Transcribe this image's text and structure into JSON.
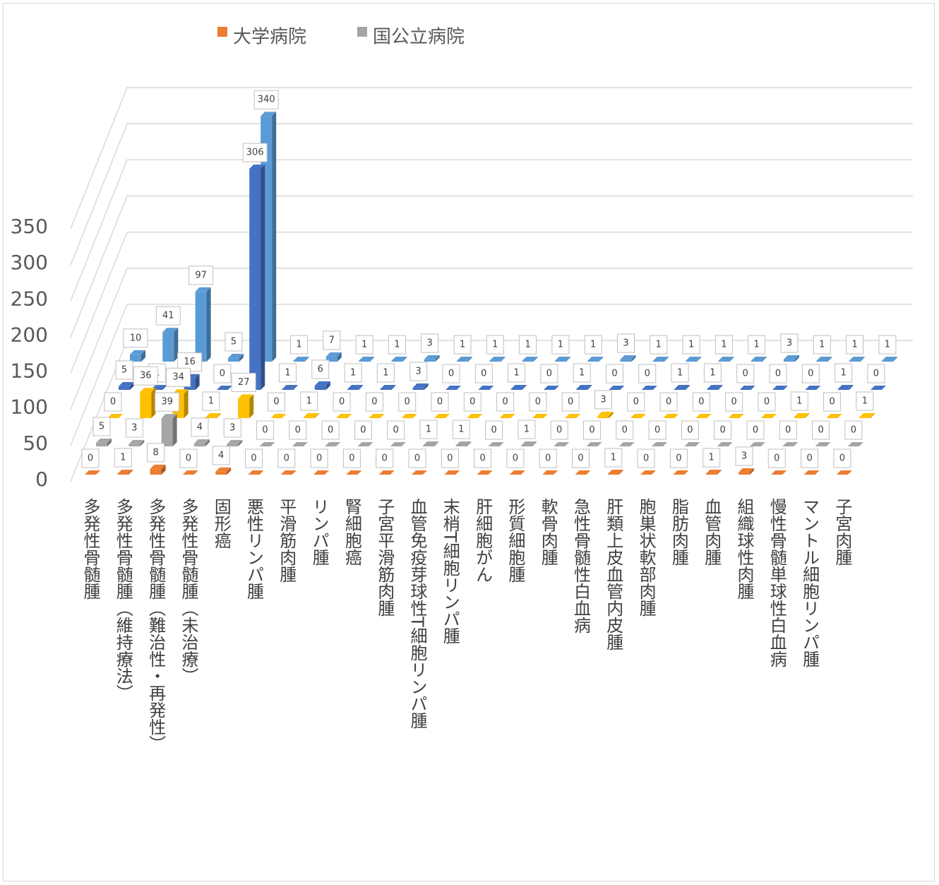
{
  "chart_data": {
    "type": "bar3d",
    "categories": [
      "多発性骨髄腫",
      "多発性骨髄腫（維持療法）",
      "多発性骨髄腫（難治性・再発性）",
      "多発性骨髄腫（未治療）",
      "固形癌",
      "悪性リンパ腫",
      "平滑筋肉腫",
      "リンパ腫",
      "腎細胞癌",
      "子宮平滑筋肉腫",
      "血管免疫芽球性T細胞リンパ腫",
      "末梢T細胞リンパ腫",
      "肝細胞がん",
      "形質細胞腫",
      "軟骨肉腫",
      "急性骨髄性白血病",
      "肝類上皮血管内皮腫",
      "胞巣状軟部肉腫",
      "脂肪肉腫",
      "血管肉腫",
      "組織球性肉腫",
      "慢性骨髄単球性白血病",
      "マントル細胞リンパ腫",
      "子宮肉腫"
    ],
    "series": [
      {
        "name": "大学病院",
        "color": "#ed7d31",
        "values": [
          0,
          1,
          8,
          0,
          4,
          0,
          0,
          0,
          0,
          0,
          0,
          0,
          0,
          0,
          0,
          0,
          1,
          0,
          0,
          1,
          3,
          0,
          0,
          0
        ]
      },
      {
        "name": "国公立病院",
        "color": "#a5a5a5",
        "values": [
          5,
          3,
          39,
          4,
          3,
          0,
          0,
          0,
          0,
          0,
          1,
          1,
          0,
          1,
          0,
          0,
          0,
          0,
          0,
          0,
          0,
          0,
          0,
          0
        ]
      },
      {
        "color": "#ffc000",
        "values": [
          0,
          36,
          34,
          1,
          27,
          0,
          1,
          0,
          0,
          0,
          0,
          0,
          0,
          0,
          0,
          3,
          0,
          0,
          0,
          0,
          0,
          1,
          0,
          1
        ]
      },
      {
        "color": "#4472c4",
        "values": [
          5,
          1,
          16,
          0,
          306,
          1,
          6,
          1,
          1,
          3,
          0,
          0,
          1,
          0,
          1,
          0,
          0,
          1,
          1,
          0,
          0,
          0,
          1,
          0
        ]
      },
      {
        "color": "#5b9bd5",
        "values": [
          10,
          41,
          97,
          5,
          340,
          1,
          7,
          1,
          1,
          3,
          1,
          1,
          1,
          1,
          1,
          3,
          1,
          1,
          1,
          1,
          3,
          1,
          1,
          1
        ]
      }
    ],
    "ylim": [
      0,
      350
    ],
    "yticks": [
      0,
      50,
      100,
      150,
      200,
      250,
      300,
      350
    ],
    "grid": true,
    "legend": "top"
  }
}
